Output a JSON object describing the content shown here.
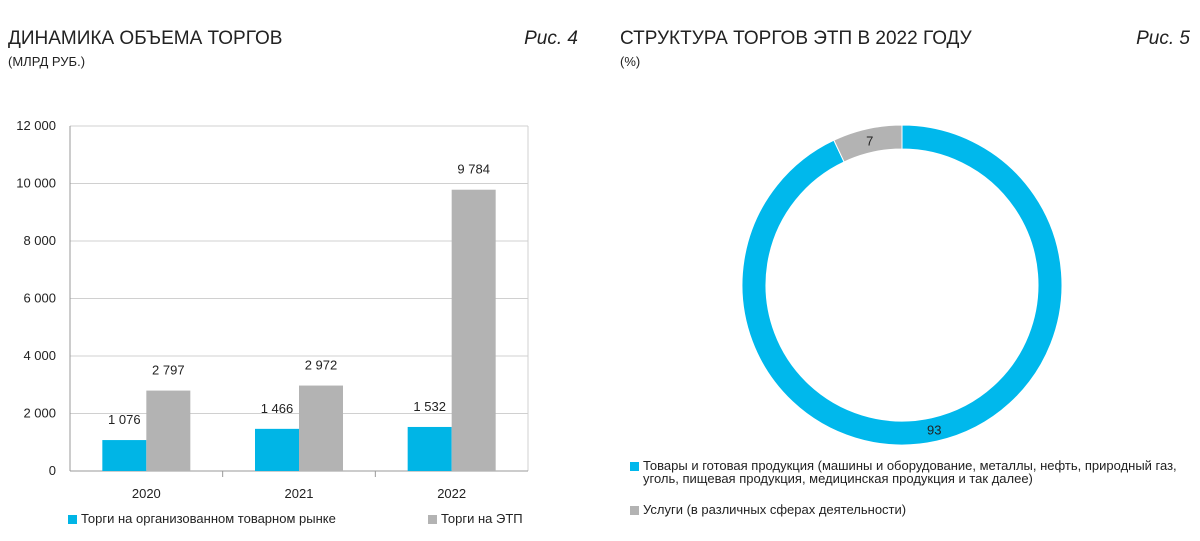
{
  "chart_data": [
    {
      "type": "bar",
      "title": "ДИНАМИКА ОБЪЕМА ТОРГОВ",
      "subtitle": "(МЛРД РУБ.)",
      "figure_label": "Рис. 4",
      "categories": [
        "2020",
        "2021",
        "2022"
      ],
      "series": [
        {
          "name": "Торги на организованном товарном рынке",
          "color": "#00b5e6",
          "values": [
            1076,
            1466,
            1532
          ],
          "value_labels": [
            "1 076",
            "1 466",
            "1 532"
          ]
        },
        {
          "name": "Торги на ЭТП",
          "color": "#b3b3b3",
          "values": [
            2797,
            2972,
            9784
          ],
          "value_labels": [
            "2 797",
            "2 972",
            "9 784"
          ]
        }
      ],
      "ylim": [
        0,
        12000
      ],
      "yticks": [
        0,
        {
          "value": 2000,
          "label": "2 000"
        },
        {
          "value": 4000,
          "label": "4 000"
        },
        {
          "value": 6000,
          "label": "6 000"
        },
        {
          "value": 8000,
          "label": "8 000"
        },
        {
          "value": 10000,
          "label": "10 000"
        },
        {
          "value": 12000,
          "label": "12 000"
        }
      ],
      "grid": true
    },
    {
      "type": "pie",
      "title": "СТРУКТУРА ТОРГОВ ЭТП В 2022 ГОДУ",
      "subtitle": "(%)",
      "figure_label": "Рис. 5",
      "categories": [
        "Товары и готовая продукция (машины и оборудование, металлы, нефть, природный газ, уголь, пищевая продукция, медицинская продукция и так далее)",
        "Услуги (в различных сферах деятельности)"
      ],
      "values": [
        93,
        7
      ],
      "colors": [
        "#00b8ec",
        "#b3b3b3"
      ]
    }
  ]
}
